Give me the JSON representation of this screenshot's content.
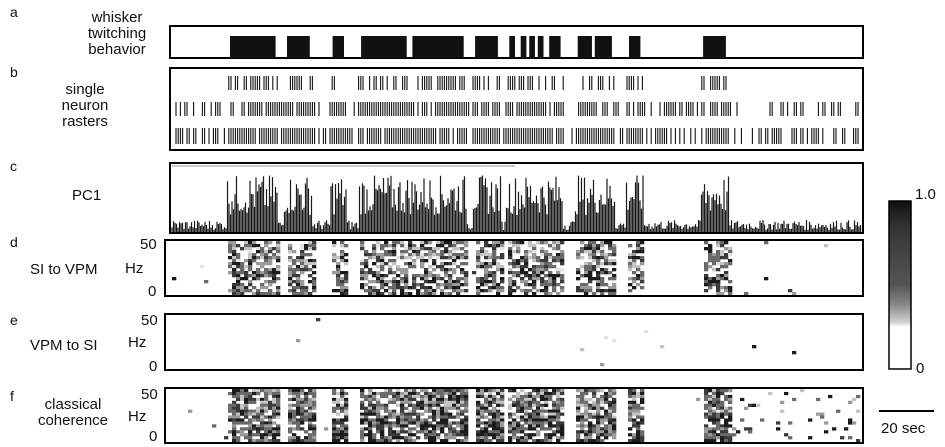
{
  "panels": {
    "a": {
      "letter": "a",
      "label_lines": [
        "whisker",
        "twitching",
        "behavior"
      ]
    },
    "b": {
      "letter": "b",
      "label_lines": [
        "single",
        "neuron",
        "rasters"
      ]
    },
    "c": {
      "letter": "c",
      "label": "PC1"
    },
    "d": {
      "letter": "d",
      "label": "SI to VPM",
      "unit": "Hz",
      "ytick_top": "50",
      "ytick_bottom": "0"
    },
    "e": {
      "letter": "e",
      "label": "VPM to SI",
      "unit": "Hz",
      "ytick_top": "50",
      "ytick_bottom": "0"
    },
    "f": {
      "letter": "f",
      "label_lines": [
        "classical",
        "coherence"
      ],
      "unit": "Hz",
      "ytick_top": "50",
      "ytick_bottom": "0"
    }
  },
  "colorbar": {
    "max_label": "1.0",
    "min_label": "0"
  },
  "scalebar": {
    "label": "20 sec"
  },
  "colors": {
    "ink": "#111111",
    "frame": "#000000",
    "background": "#ffffff"
  },
  "chart_data": {
    "type": "heatmap",
    "x_unit": "sec",
    "whisker_twitching_epochs": [
      [
        10,
        18
      ],
      [
        20,
        24
      ],
      [
        28,
        30
      ],
      [
        33,
        41
      ],
      [
        42,
        51
      ],
      [
        53,
        57
      ],
      [
        59,
        60
      ],
      [
        61,
        62
      ],
      [
        62.5,
        63.5
      ],
      [
        64,
        65
      ],
      [
        66,
        68
      ],
      [
        71,
        73.5
      ],
      [
        74,
        77
      ],
      [
        80,
        82
      ],
      [
        93,
        97
      ]
    ],
    "spectrogram_ylim_hz": [
      0,
      50
    ],
    "colorbar_range": [
      0,
      1.0
    ]
  }
}
